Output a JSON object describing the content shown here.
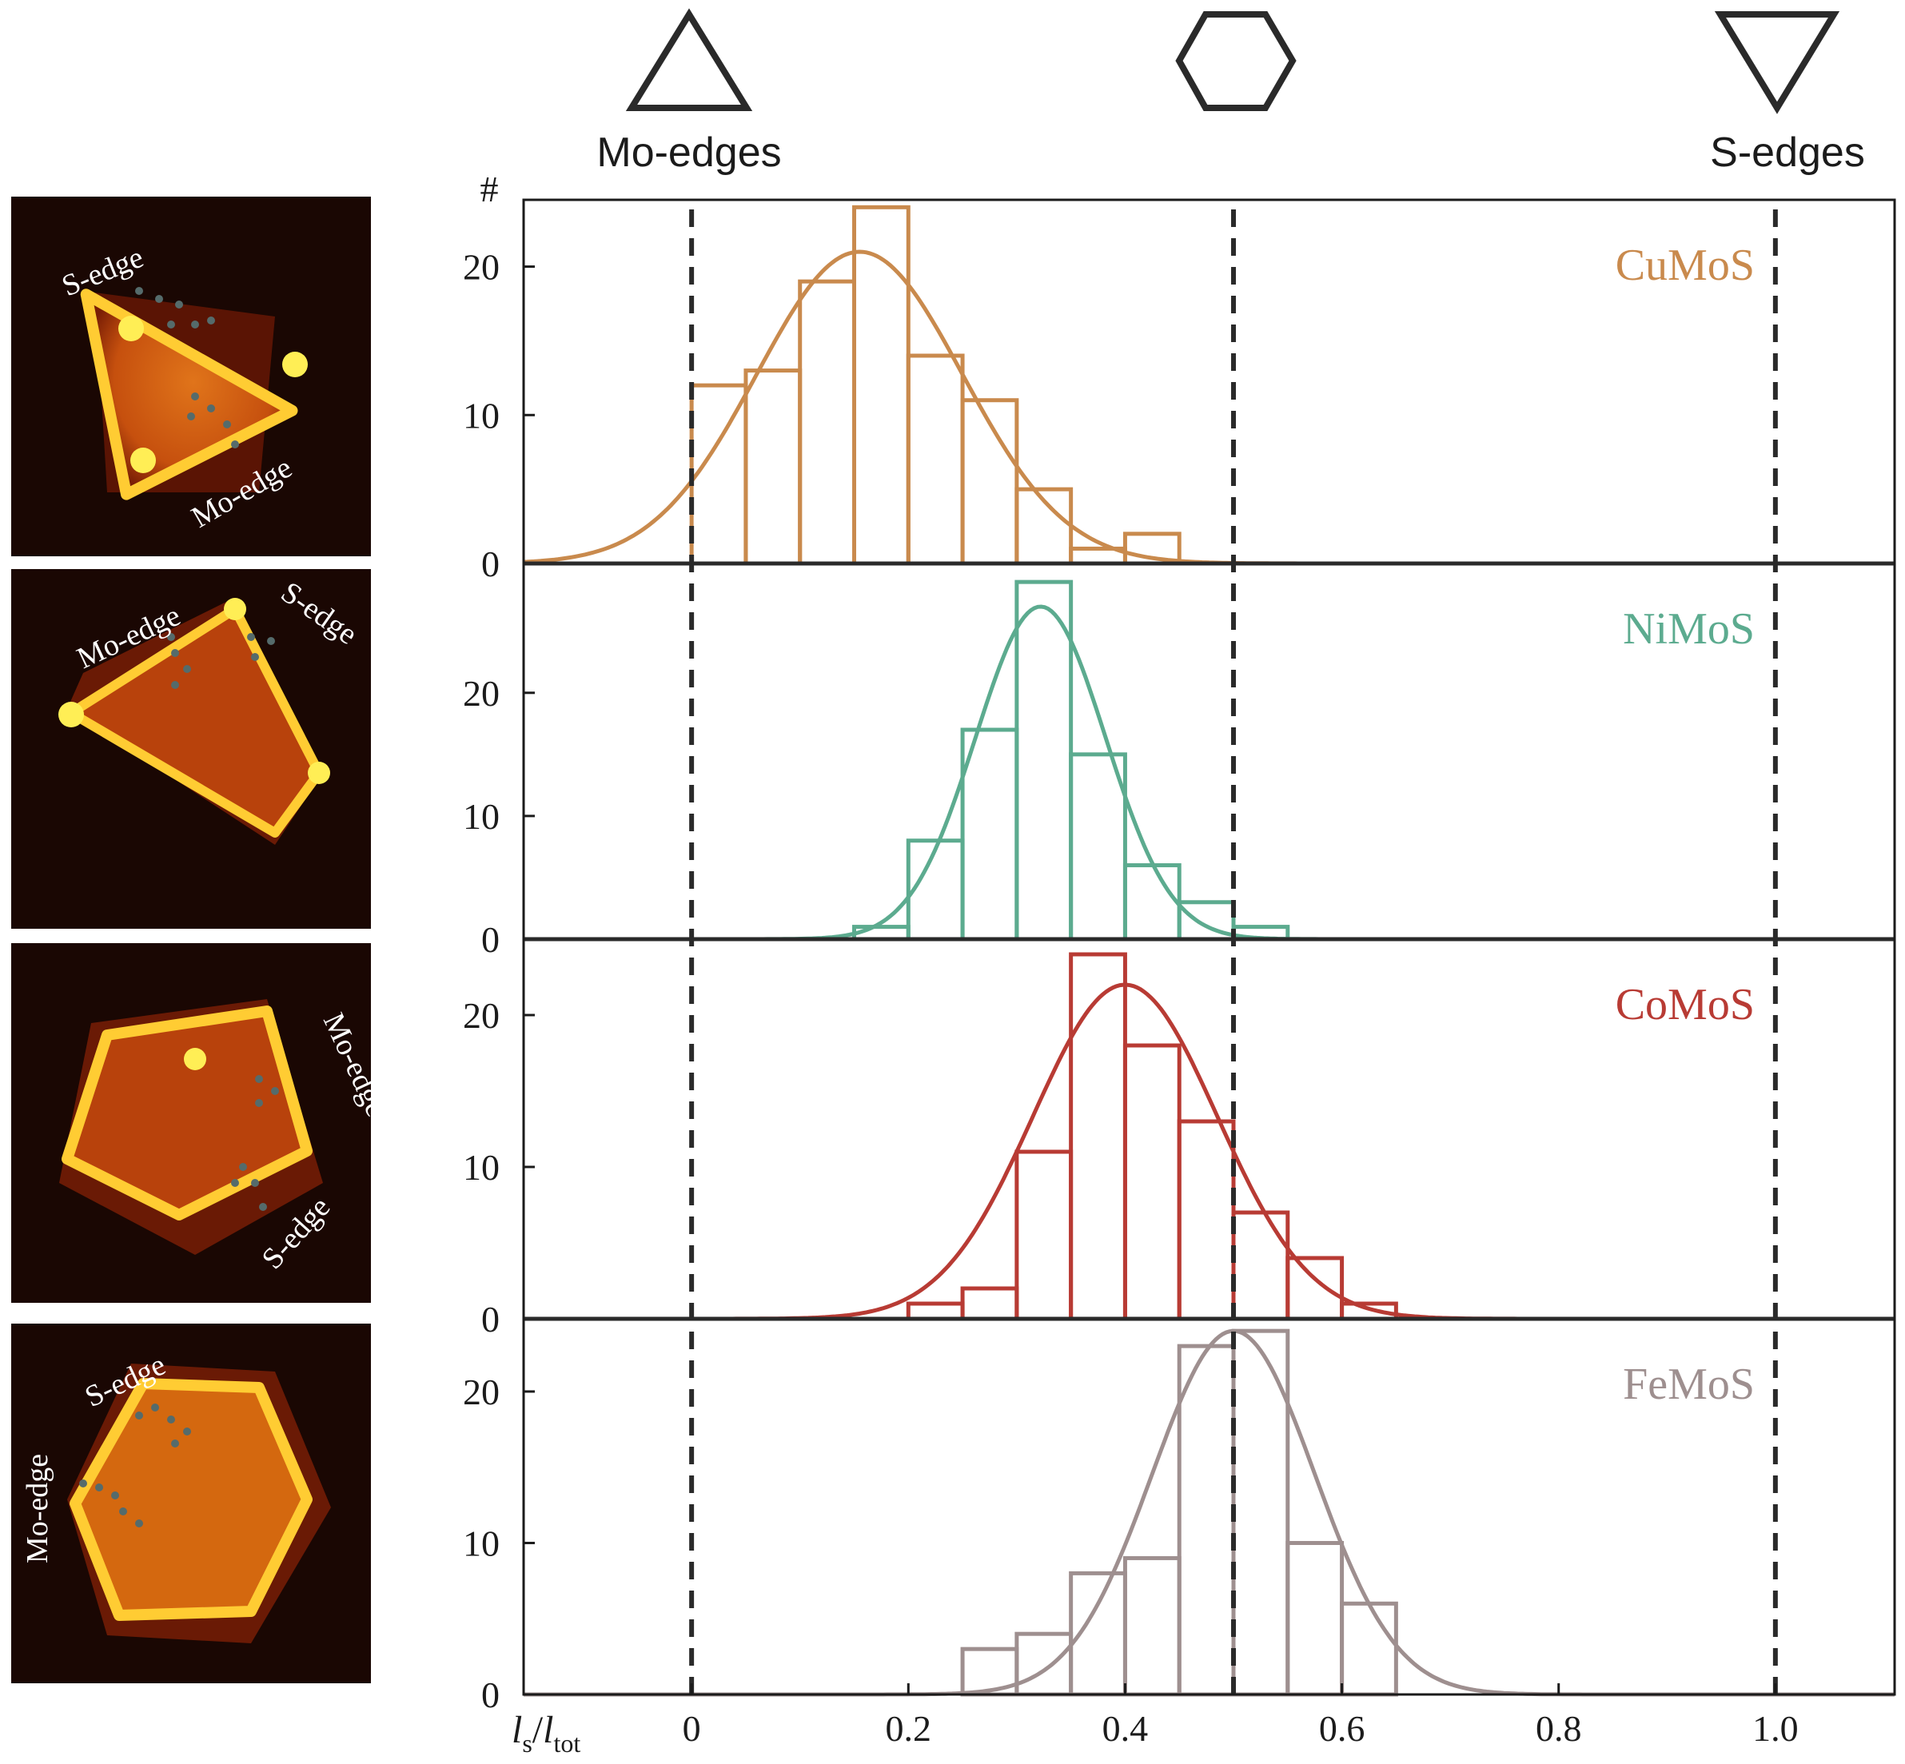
{
  "shapes": {
    "left": {
      "icon": "triangle-up-icon",
      "label": "Mo-edges"
    },
    "middle": {
      "icon": "hexagon-icon"
    },
    "right": {
      "icon": "triangle-down-icon",
      "label": "S-edges"
    }
  },
  "stm_images": [
    {
      "labels": [
        "S-edge",
        "Mo-edge"
      ]
    },
    {
      "labels": [
        "Mo-edge",
        "S-edge"
      ]
    },
    {
      "labels": [
        "Mo-edge",
        "S-edge"
      ]
    },
    {
      "labels": [
        "S-edge",
        "Mo-edge"
      ]
    }
  ],
  "chart_data": {
    "type": "bar",
    "subtype": "stacked-panel histograms with gaussian fits",
    "y_axis_symbol": "#",
    "xlabel": {
      "main": "l",
      "sub1": "s",
      "sep": "/",
      "main2": "l",
      "sub2": "tot"
    },
    "xlim": [
      -0.155,
      1.11
    ],
    "xticks": [
      0,
      0.2,
      0.4,
      0.6,
      0.8,
      1.0
    ],
    "xtick_labels": [
      "0",
      "0.2",
      "0.4",
      "0.6",
      "0.8",
      "1.0"
    ],
    "reference_lines": [
      0,
      0.5,
      1.0
    ],
    "bin_width": 0.05,
    "panels": [
      {
        "name": "CuMoS",
        "color": "#c98a4d",
        "ylim": [
          0,
          24.5
        ],
        "yticks": [
          0,
          10,
          20
        ],
        "bin_starts": [
          0.0,
          0.05,
          0.1,
          0.15,
          0.2,
          0.25,
          0.3,
          0.35,
          0.4
        ],
        "counts": [
          12,
          13,
          19,
          24,
          14,
          11,
          5,
          1,
          2
        ],
        "fit": {
          "mean": 0.155,
          "sd": 0.095,
          "peak": 21
        }
      },
      {
        "name": "NiMoS",
        "color": "#5cab8f",
        "ylim": [
          0,
          30.5
        ],
        "yticks": [
          0,
          10,
          20
        ],
        "bin_starts": [
          0.15,
          0.2,
          0.25,
          0.3,
          0.35,
          0.4,
          0.45,
          0.5
        ],
        "counts": [
          1,
          8,
          17,
          29,
          15,
          6,
          3,
          1
        ],
        "fit": {
          "mean": 0.322,
          "sd": 0.06,
          "peak": 27
        }
      },
      {
        "name": "CoMoS",
        "color": "#b83b34",
        "ylim": [
          0,
          25
        ],
        "yticks": [
          0,
          10,
          20
        ],
        "bin_starts": [
          0.2,
          0.25,
          0.3,
          0.35,
          0.4,
          0.45,
          0.5,
          0.55,
          0.6
        ],
        "counts": [
          1,
          2,
          11,
          24,
          18,
          13,
          7,
          4,
          1
        ],
        "fit": {
          "mean": 0.4,
          "sd": 0.085,
          "peak": 22
        }
      },
      {
        "name": "FeMoS",
        "color": "#9e8f8f",
        "ylim": [
          0,
          24.8
        ],
        "yticks": [
          0,
          10,
          20
        ],
        "bin_starts": [
          0.25,
          0.3,
          0.35,
          0.4,
          0.45,
          0.5,
          0.55,
          0.6
        ],
        "counts": [
          3,
          4,
          8,
          9,
          23,
          24,
          10,
          6
        ],
        "fit": {
          "mean": 0.5,
          "sd": 0.075,
          "peak": 24
        }
      }
    ]
  }
}
